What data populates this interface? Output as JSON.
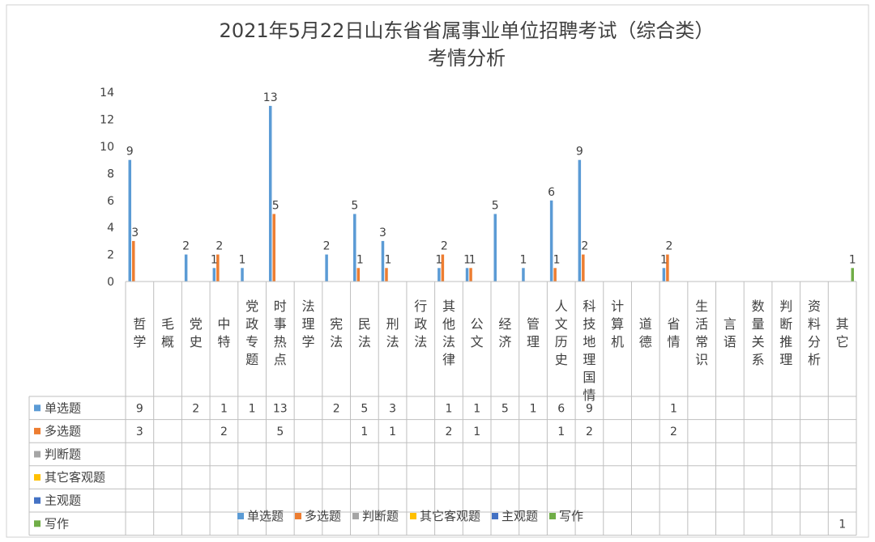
{
  "chart_data": {
    "type": "bar",
    "title": "2021年5月22日山东省省属事业单位招聘考试（综合类）",
    "subtitle": "考情分析",
    "yticks": [
      "0",
      "2",
      "4",
      "6",
      "8",
      "10",
      "12",
      "14"
    ],
    "ylim": [
      0,
      14
    ],
    "grid": false,
    "legend_position": "bottom",
    "categories": [
      "哲学",
      "毛概",
      "党史",
      "中特",
      "党政专题",
      "时事热点",
      "法理学",
      "宪法",
      "民法",
      "刑法",
      "行政法",
      "其他法律",
      "公文",
      "经济",
      "管理",
      "人文历史",
      "科技地理国情",
      "计算机",
      "道德",
      "省情",
      "生活常识",
      "言语",
      "数量关系",
      "判断推理",
      "资料分析",
      "其它"
    ],
    "series": [
      {
        "name": "单选题",
        "color": "#5b9bd5",
        "values": [
          9,
          null,
          2,
          1,
          1,
          13,
          null,
          2,
          5,
          3,
          null,
          1,
          1,
          5,
          1,
          6,
          9,
          null,
          null,
          1,
          null,
          null,
          null,
          null,
          null,
          null
        ]
      },
      {
        "name": "多选题",
        "color": "#ed7d31",
        "values": [
          3,
          null,
          null,
          2,
          null,
          5,
          null,
          null,
          1,
          1,
          null,
          2,
          1,
          null,
          null,
          1,
          2,
          null,
          null,
          2,
          null,
          null,
          null,
          null,
          null,
          null
        ]
      },
      {
        "name": "判断题",
        "color": "#a5a5a5",
        "values": [
          null,
          null,
          null,
          null,
          null,
          null,
          null,
          null,
          null,
          null,
          null,
          null,
          null,
          null,
          null,
          null,
          null,
          null,
          null,
          null,
          null,
          null,
          null,
          null,
          null,
          null
        ]
      },
      {
        "name": "其它客观题",
        "color": "#ffc000",
        "values": [
          null,
          null,
          null,
          null,
          null,
          null,
          null,
          null,
          null,
          null,
          null,
          null,
          null,
          null,
          null,
          null,
          null,
          null,
          null,
          null,
          null,
          null,
          null,
          null,
          null,
          null
        ]
      },
      {
        "name": "主观题",
        "color": "#4472c4",
        "values": [
          null,
          null,
          null,
          null,
          null,
          null,
          null,
          null,
          null,
          null,
          null,
          null,
          null,
          null,
          null,
          null,
          null,
          null,
          null,
          null,
          null,
          null,
          null,
          null,
          null,
          null
        ]
      },
      {
        "name": "写作",
        "color": "#70ad47",
        "values": [
          null,
          null,
          null,
          null,
          null,
          null,
          null,
          null,
          null,
          null,
          null,
          null,
          null,
          null,
          null,
          null,
          null,
          null,
          null,
          null,
          null,
          null,
          null,
          null,
          null,
          1
        ]
      }
    ]
  }
}
